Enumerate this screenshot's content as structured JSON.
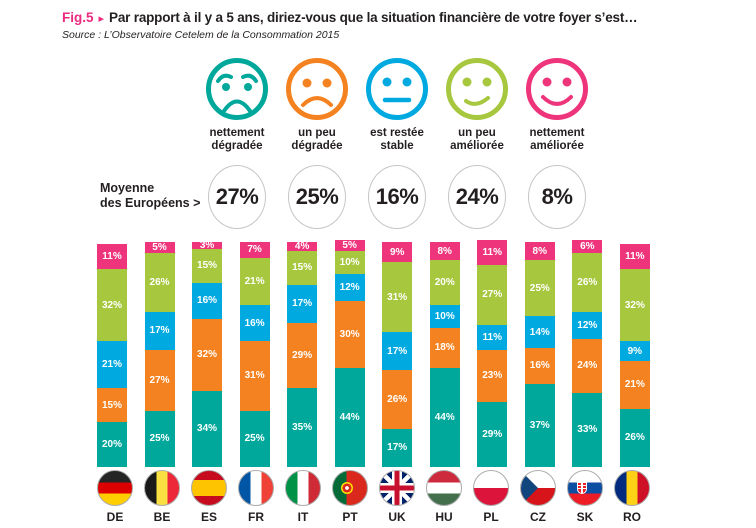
{
  "header": {
    "fig_label": "Fig.5",
    "arrow": "▸",
    "title": "Par rapport à il y a 5 ans, diriez-vous que la situation financière de votre foyer s’est…",
    "source": "Source : L’Observatoire Cetelem de la Consommation 2015"
  },
  "average_label": {
    "line1": "Moyenne",
    "line2": "des Européens >"
  },
  "colors": {
    "much_worse": "#00A79B",
    "bit_worse": "#F58220",
    "stable": "#00A9E0",
    "bit_better": "#A7C73E",
    "much_better": "#EE357C",
    "accent_pink": "#EC2A80",
    "text_dark": "#231F20"
  },
  "categories": [
    {
      "key": "much-worse",
      "lines": [
        "nettement",
        "dégradée"
      ],
      "color": "#00A79B",
      "average": "27%"
    },
    {
      "key": "bit-worse",
      "lines": [
        "un peu",
        "dégradée"
      ],
      "color": "#F58220",
      "average": "25%"
    },
    {
      "key": "stable",
      "lines": [
        "est restée",
        "stable"
      ],
      "color": "#00A9E0",
      "average": "16%"
    },
    {
      "key": "bit-better",
      "lines": [
        "un peu",
        "améliorée"
      ],
      "color": "#A7C73E",
      "average": "24%"
    },
    {
      "key": "much-better",
      "lines": [
        "nettement",
        "améliorée"
      ],
      "color": "#EE357C",
      "average": "8%"
    }
  ],
  "countries": [
    {
      "code": "DE",
      "values": [
        20,
        15,
        21,
        32,
        11
      ]
    },
    {
      "code": "BE",
      "values": [
        25,
        27,
        17,
        26,
        5
      ]
    },
    {
      "code": "ES",
      "values": [
        34,
        32,
        16,
        15,
        3
      ]
    },
    {
      "code": "FR",
      "values": [
        25,
        31,
        16,
        21,
        7
      ]
    },
    {
      "code": "IT",
      "values": [
        35,
        29,
        17,
        15,
        4
      ]
    },
    {
      "code": "PT",
      "values": [
        44,
        30,
        12,
        10,
        5
      ]
    },
    {
      "code": "UK",
      "values": [
        17,
        26,
        17,
        31,
        9
      ]
    },
    {
      "code": "HU",
      "values": [
        44,
        18,
        10,
        20,
        8
      ]
    },
    {
      "code": "PL",
      "values": [
        29,
        23,
        11,
        27,
        11
      ]
    },
    {
      "code": "CZ",
      "values": [
        37,
        16,
        14,
        25,
        8
      ]
    },
    {
      "code": "SK",
      "values": [
        33,
        24,
        12,
        26,
        6
      ]
    },
    {
      "code": "RO",
      "values": [
        26,
        21,
        9,
        32,
        11
      ]
    }
  ],
  "chart_data": {
    "type": "bar",
    "stacked": true,
    "unit": "%",
    "title": "Par rapport à il y a 5 ans, diriez-vous que la situation financière de votre foyer s’est…",
    "categories": [
      "DE",
      "BE",
      "ES",
      "FR",
      "IT",
      "PT",
      "UK",
      "HU",
      "PL",
      "CZ",
      "SK",
      "RO"
    ],
    "series": [
      {
        "name": "nettement dégradée",
        "color": "#00A79B",
        "average": 27,
        "values": [
          20,
          25,
          34,
          25,
          35,
          44,
          17,
          44,
          29,
          37,
          33,
          26
        ]
      },
      {
        "name": "un peu dégradée",
        "color": "#F58220",
        "average": 25,
        "values": [
          15,
          27,
          32,
          31,
          29,
          30,
          26,
          18,
          23,
          16,
          24,
          21
        ]
      },
      {
        "name": "est restée stable",
        "color": "#00A9E0",
        "average": 16,
        "values": [
          21,
          17,
          16,
          16,
          17,
          12,
          17,
          10,
          11,
          14,
          12,
          9
        ]
      },
      {
        "name": "un peu améliorée",
        "color": "#A7C73E",
        "average": 24,
        "values": [
          32,
          26,
          15,
          21,
          15,
          10,
          31,
          20,
          27,
          25,
          26,
          32
        ]
      },
      {
        "name": "nettement améliorée",
        "color": "#EE357C",
        "average": 8,
        "values": [
          11,
          5,
          3,
          7,
          4,
          5,
          9,
          8,
          11,
          8,
          6,
          11
        ]
      }
    ],
    "data_labels": true,
    "legend_position": "top",
    "ylim": [
      0,
      101
    ]
  }
}
